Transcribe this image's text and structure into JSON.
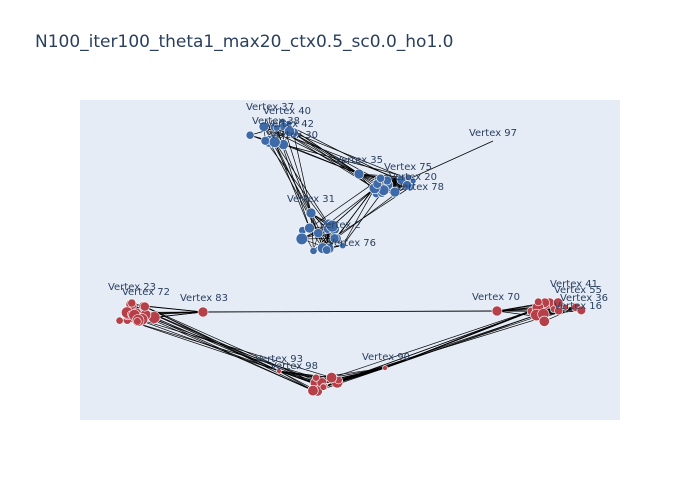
{
  "title": "N100_iter100_theta1_max20_ctx0.5_sc0.0_ho1.0",
  "colors": {
    "plot_bg": "#e5ecf6",
    "edge": "#000000",
    "blue_node": "#3e6ba8",
    "red_node": "#b5404a",
    "node_stroke": "#ffffff",
    "label": "#2a3f5f"
  },
  "labels": [
    "Vertex 37",
    "Vertex 40",
    "Vertex 38",
    "Vertex 42",
    "Vertex 30",
    "Vertex 97",
    "Vertex 35",
    "Vertex 75",
    "Vertex 20",
    "Vertex 78",
    "Vertex 31",
    "Vertex 2",
    "Vertex 76",
    "Vertex 23",
    "Vertex 72",
    "Vertex 83",
    "Vertex 70",
    "Vertex 41",
    "Vertex 55",
    "Vertex 36",
    "Vertex 16",
    "Vertex 93",
    "Vertex 90",
    "Vertex 98"
  ]
}
